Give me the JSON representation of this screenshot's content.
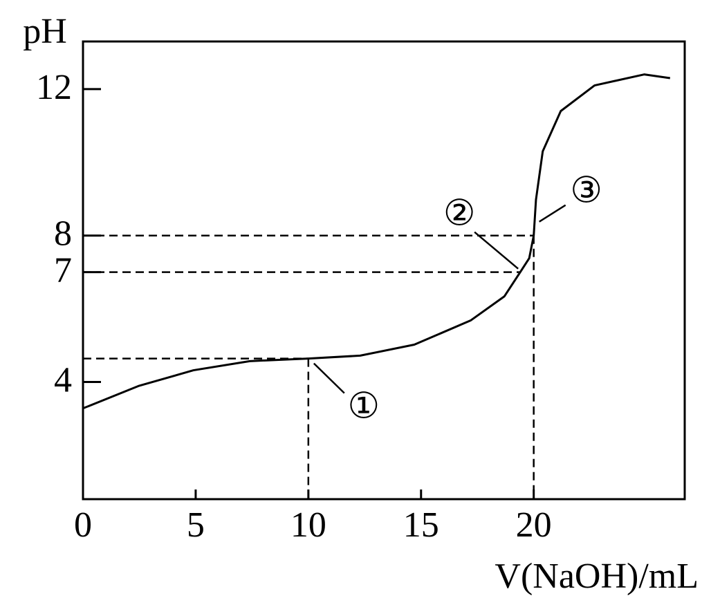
{
  "chart_data": {
    "type": "line",
    "y_label": "pH",
    "x_label": "V(NaOH)/mL",
    "x": [
      0,
      2.46,
      4.9,
      7.4,
      10,
      12.3,
      14.7,
      17.2,
      18.7,
      19.4,
      19.8,
      20,
      20.1,
      20.4,
      21.2,
      22.7,
      24.9,
      26.05
    ],
    "series": [
      {
        "values": [
          3.28,
          3.89,
          4.32,
          4.57,
          4.64,
          4.72,
          5.02,
          5.68,
          6.34,
          7,
          7.38,
          8,
          8.98,
          10.3,
          11.4,
          12.1,
          12.4,
          12.3
        ],
        "color": "#000000"
      }
    ],
    "xlim": [
      0,
      26.7
    ],
    "ylim": [
      0.8,
      13.3
    ],
    "xticks": [
      0,
      5,
      10,
      15,
      20
    ],
    "yticks": [
      4,
      7,
      8,
      12
    ],
    "guides": [
      {
        "x": 10,
        "y": 4.64,
        "vertical": true
      },
      {
        "x": 19.4,
        "y": 7,
        "vertical": false
      },
      {
        "x": 20,
        "y": 8,
        "vertical": true
      }
    ],
    "annotations": [
      {
        "text": "①",
        "x": 10,
        "y": 4.64
      },
      {
        "text": "②",
        "x": 19.4,
        "y": 7
      },
      {
        "text": "③",
        "x": 20,
        "y": 8
      }
    ]
  }
}
